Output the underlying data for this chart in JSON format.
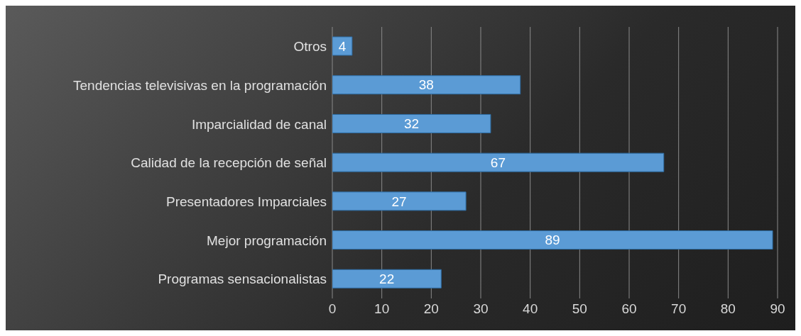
{
  "chart_data": {
    "type": "bar",
    "orientation": "horizontal",
    "categories": [
      "Otros",
      "Tendencias televisivas en la programación",
      "Imparcialidad de canal",
      "Calidad de la recepción de señal",
      "Presentadores Imparciales",
      "Mejor programación",
      "Programas sensacionalistas"
    ],
    "values": [
      4,
      38,
      32,
      67,
      27,
      89,
      22
    ],
    "color": "#5b9bd5",
    "xlim": [
      0,
      90
    ],
    "xticks": [
      0,
      10,
      20,
      30,
      40,
      50,
      60,
      70,
      80,
      90
    ],
    "grid": "x",
    "data_labels": true
  }
}
